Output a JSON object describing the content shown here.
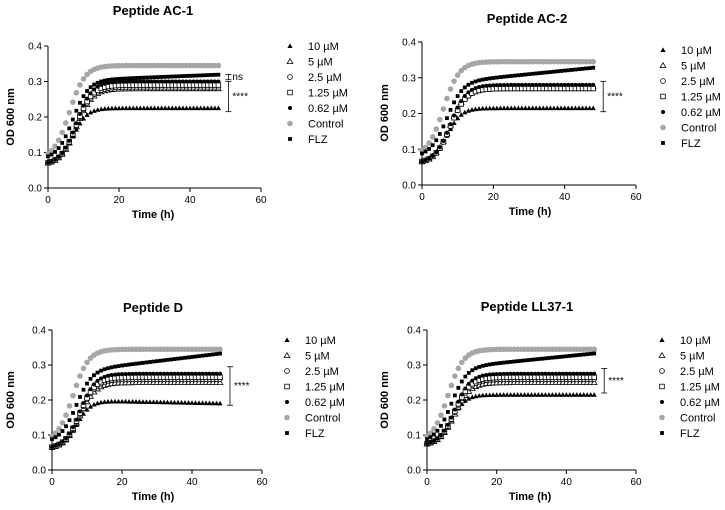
{
  "colors": {
    "black": "#000000",
    "control": "#a6a6a6"
  },
  "chart_data": [
    {
      "type": "scatter",
      "title": "Peptide AC-1",
      "xlabel": "Time (h)",
      "ylabel": "OD 600 nm",
      "xlim": [
        0,
        60
      ],
      "ylim": [
        0,
        0.4
      ],
      "xticks": [
        "0",
        "20",
        "40",
        "60"
      ],
      "yticks": [
        "0.0",
        "0.1",
        "0.2",
        "0.3",
        "0.4"
      ],
      "x_range": [
        0,
        48
      ],
      "step": 1,
      "legend_position": "right",
      "series": [
        {
          "name": "10 µM",
          "marker": "triangle-filled",
          "start": 0.065,
          "plateau": 0.225,
          "k": 0.5,
          "mid": 7
        },
        {
          "name": "5 µM",
          "marker": "triangle-open",
          "start": 0.065,
          "plateau": 0.28,
          "k": 0.45,
          "mid": 8
        },
        {
          "name": "2.5 µM",
          "marker": "circle-open",
          "start": 0.065,
          "plateau": 0.285,
          "k": 0.45,
          "mid": 8
        },
        {
          "name": "1.25 µM",
          "marker": "square-open",
          "start": 0.065,
          "plateau": 0.29,
          "k": 0.45,
          "mid": 8
        },
        {
          "name": "0.62 µM",
          "marker": "circle-small",
          "start": 0.065,
          "plateau": 0.3,
          "k": 0.45,
          "mid": 8
        },
        {
          "name": "Control",
          "marker": "circle-gray",
          "start": 0.08,
          "plateau": 0.345,
          "k": 0.45,
          "mid": 6
        },
        {
          "name": "FLZ",
          "marker": "square-filled",
          "start": 0.08,
          "plateau": 0.3,
          "k": 0.45,
          "mid": 7,
          "drift": 0.0004
        }
      ],
      "annotations": [
        {
          "text": "ns",
          "y1": 0.305,
          "y2": 0.32
        },
        {
          "text": "****",
          "y1": 0.215,
          "y2": 0.3
        }
      ]
    },
    {
      "type": "scatter",
      "title": "Peptide AC-2",
      "xlabel": "Time (h)",
      "ylabel": "OD 600 nm",
      "xlim": [
        0,
        60
      ],
      "ylim": [
        0,
        0.4
      ],
      "xticks": [
        "0",
        "20",
        "40",
        "60"
      ],
      "yticks": [
        "0.0",
        "0.1",
        "0.2",
        "0.3",
        "0.4"
      ],
      "x_range": [
        0,
        48
      ],
      "step": 1,
      "legend_position": "right",
      "series": [
        {
          "name": "10 µM",
          "marker": "triangle-filled",
          "start": 0.06,
          "plateau": 0.215,
          "k": 0.5,
          "mid": 7
        },
        {
          "name": "5 µM",
          "marker": "triangle-open",
          "start": 0.06,
          "plateau": 0.275,
          "k": 0.45,
          "mid": 8
        },
        {
          "name": "2.5 µM",
          "marker": "circle-open",
          "start": 0.06,
          "plateau": 0.27,
          "k": 0.45,
          "mid": 8
        },
        {
          "name": "1.25 µM",
          "marker": "square-open",
          "start": 0.06,
          "plateau": 0.27,
          "k": 0.45,
          "mid": 8
        },
        {
          "name": "0.62 µM",
          "marker": "circle-small",
          "start": 0.06,
          "plateau": 0.28,
          "k": 0.45,
          "mid": 8
        },
        {
          "name": "Control",
          "marker": "circle-gray",
          "start": 0.08,
          "plateau": 0.345,
          "k": 0.45,
          "mid": 6
        },
        {
          "name": "FLZ",
          "marker": "square-filled",
          "start": 0.08,
          "plateau": 0.28,
          "k": 0.45,
          "mid": 7,
          "drift": 0.001
        }
      ],
      "annotations": [
        {
          "text": "****",
          "y1": 0.205,
          "y2": 0.29
        }
      ]
    },
    {
      "type": "scatter",
      "title": "Peptide D",
      "xlabel": "Time (h)",
      "ylabel": "OD 600 nm",
      "xlim": [
        0,
        60
      ],
      "ylim": [
        0,
        0.4
      ],
      "xticks": [
        "0",
        "20",
        "40",
        "60"
      ],
      "yticks": [
        "0.0",
        "0.1",
        "0.2",
        "0.3",
        "0.4"
      ],
      "x_range": [
        0,
        48
      ],
      "step": 1,
      "legend_position": "right",
      "series": [
        {
          "name": "10 µM",
          "marker": "triangle-filled",
          "start": 0.06,
          "plateau": 0.2,
          "k": 0.5,
          "mid": 7,
          "drift": -0.0002
        },
        {
          "name": "5 µM",
          "marker": "triangle-open",
          "start": 0.06,
          "plateau": 0.25,
          "k": 0.45,
          "mid": 8
        },
        {
          "name": "2.5 µM",
          "marker": "circle-open",
          "start": 0.06,
          "plateau": 0.26,
          "k": 0.45,
          "mid": 8
        },
        {
          "name": "1.25 µM",
          "marker": "square-open",
          "start": 0.06,
          "plateau": 0.265,
          "k": 0.45,
          "mid": 8
        },
        {
          "name": "0.62 µM",
          "marker": "circle-small",
          "start": 0.06,
          "plateau": 0.275,
          "k": 0.45,
          "mid": 8
        },
        {
          "name": "Control",
          "marker": "circle-gray",
          "start": 0.08,
          "plateau": 0.345,
          "k": 0.45,
          "mid": 6
        },
        {
          "name": "FLZ",
          "marker": "square-filled",
          "start": 0.08,
          "plateau": 0.275,
          "k": 0.45,
          "mid": 7,
          "drift": 0.0012
        }
      ],
      "annotations": [
        {
          "text": "****",
          "y1": 0.185,
          "y2": 0.295
        }
      ]
    },
    {
      "type": "scatter",
      "title": "Peptide LL37-1",
      "xlabel": "Time (h)",
      "ylabel": "OD 600 nm",
      "xlim": [
        0,
        60
      ],
      "ylim": [
        0,
        0.4
      ],
      "xticks": [
        "0",
        "20",
        "40",
        "60"
      ],
      "yticks": [
        "0.0",
        "0.1",
        "0.2",
        "0.3",
        "0.4"
      ],
      "x_range": [
        0,
        48
      ],
      "step": 1,
      "legend_position": "right",
      "series": [
        {
          "name": "10 µM",
          "marker": "triangle-filled",
          "start": 0.07,
          "plateau": 0.215,
          "k": 0.5,
          "mid": 7
        },
        {
          "name": "5 µM",
          "marker": "triangle-open",
          "start": 0.07,
          "plateau": 0.25,
          "k": 0.45,
          "mid": 8
        },
        {
          "name": "2.5 µM",
          "marker": "circle-open",
          "start": 0.07,
          "plateau": 0.26,
          "k": 0.45,
          "mid": 8
        },
        {
          "name": "1.25 µM",
          "marker": "square-open",
          "start": 0.07,
          "plateau": 0.265,
          "k": 0.45,
          "mid": 8
        },
        {
          "name": "0.62 µM",
          "marker": "circle-small",
          "start": 0.07,
          "plateau": 0.275,
          "k": 0.45,
          "mid": 8
        },
        {
          "name": "Control",
          "marker": "circle-gray",
          "start": 0.08,
          "plateau": 0.345,
          "k": 0.45,
          "mid": 6
        },
        {
          "name": "FLZ",
          "marker": "square-filled",
          "start": 0.08,
          "plateau": 0.285,
          "k": 0.45,
          "mid": 7,
          "drift": 0.001
        }
      ],
      "annotations": [
        {
          "text": "****",
          "y1": 0.22,
          "y2": 0.29
        }
      ]
    }
  ]
}
